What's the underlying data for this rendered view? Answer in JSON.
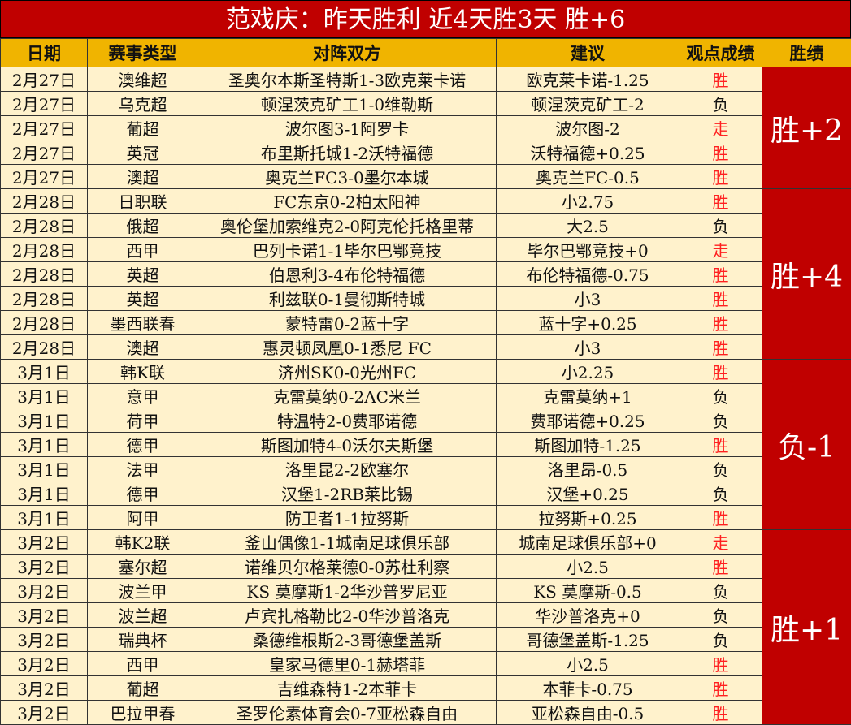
{
  "title": "范戏庆：昨天胜利 近4天胜3天 胜+6",
  "headers": [
    "日期",
    "赛事类型",
    "对阵双方",
    "建议",
    "观点成绩",
    "胜绩"
  ],
  "colors": {
    "title_bg": "#c00000",
    "header_bg": "#f0b400",
    "row_bg": "#fff2cc",
    "win": "#ff2020"
  },
  "rows": [
    [
      "2月27日",
      "澳维超",
      "圣奥尔本斯圣特斯1-3欧克莱卡诺",
      "欧克莱卡诺-1.25",
      "胜"
    ],
    [
      "2月27日",
      "乌克超",
      "顿涅茨克矿工1-0维勒斯",
      "顿涅茨克矿工-2",
      "负"
    ],
    [
      "2月27日",
      "葡超",
      "波尔图3-1阿罗卡",
      "波尔图-2",
      "走"
    ],
    [
      "2月27日",
      "英冠",
      "布里斯托城1-2沃特福德",
      "沃特福德+0.25",
      "胜"
    ],
    [
      "2月27日",
      "澳超",
      "奥克兰FC3-0墨尔本城",
      "奥克兰FC-0.5",
      "胜"
    ],
    [
      "2月28日",
      "日职联",
      "FC东京0-2柏太阳神",
      "小2.75",
      "胜"
    ],
    [
      "2月28日",
      "俄超",
      "奥伦堡加索维克2-0阿克伦托格里蒂",
      "大2.5",
      "负"
    ],
    [
      "2月28日",
      "西甲",
      "巴列卡诺1-1毕尔巴鄂竞技",
      "毕尔巴鄂竞技+0",
      "走"
    ],
    [
      "2月28日",
      "英超",
      "伯恩利3-4布伦特福德",
      "布伦特福德-0.75",
      "胜"
    ],
    [
      "2月28日",
      "英超",
      "利兹联0-1曼彻斯特城",
      "小3",
      "胜"
    ],
    [
      "2月28日",
      "墨西联春",
      "蒙特雷0-2蓝十字",
      "蓝十字+0.25",
      "胜"
    ],
    [
      "2月28日",
      "澳超",
      "惠灵顿凤凰0-1悉尼 FC",
      "小3",
      "胜"
    ],
    [
      "3月1日",
      "韩K联",
      "济州SK0-0光州FC",
      "小2.25",
      "胜"
    ],
    [
      "3月1日",
      "意甲",
      "克雷莫纳0-2AC米兰",
      "克雷莫纳+1",
      "负"
    ],
    [
      "3月1日",
      "荷甲",
      "特温特2-0费耶诺德",
      "费耶诺德+0.25",
      "负"
    ],
    [
      "3月1日",
      "德甲",
      "斯图加特4-0沃尔夫斯堡",
      "斯图加特-1.25",
      "胜"
    ],
    [
      "3月1日",
      "法甲",
      "洛里昆2-2欧塞尔",
      "洛里昂-0.5",
      "负"
    ],
    [
      "3月1日",
      "德甲",
      "汉堡1-2RB莱比锡",
      "汉堡+0.25",
      "负"
    ],
    [
      "3月1日",
      "阿甲",
      "防卫者1-1拉努斯",
      "拉努斯+0.25",
      "胜"
    ],
    [
      "3月2日",
      "韩K2联",
      "釜山偶像1-1城南足球俱乐部",
      "城南足球俱乐部+0",
      "走"
    ],
    [
      "3月2日",
      "塞尔超",
      "诺维贝尔格莱德0-0苏杜利察",
      "小2.5",
      "胜"
    ],
    [
      "3月2日",
      "波兰甲",
      "KS 莫摩斯1-2华沙普罗尼亚",
      "KS 莫摩斯-0.5",
      "负"
    ],
    [
      "3月2日",
      "波兰超",
      "卢宾扎格勒比2-0华沙普洛克",
      "华沙普洛克+0",
      "负"
    ],
    [
      "3月2日",
      "瑞典杯",
      "桑德维根斯2-3哥德堡盖斯",
      "哥德堡盖斯-1.25",
      "负"
    ],
    [
      "3月2日",
      "西甲",
      "皇家马德里0-1赫塔菲",
      "小2.5",
      "胜"
    ],
    [
      "3月2日",
      "葡超",
      "吉维森特1-2本菲卡",
      "本菲卡-0.75",
      "胜"
    ],
    [
      "3月2日",
      "巴拉甲春",
      "圣罗伦素体育会0-7亚松森自由",
      "亚松森自由-0.5",
      "胜"
    ]
  ],
  "summaries": [
    {
      "label": "胜+2",
      "span": 5
    },
    {
      "label": "胜+4",
      "span": 7
    },
    {
      "label": "负-1",
      "span": 7
    },
    {
      "label": "胜+1",
      "span": 8
    }
  ]
}
